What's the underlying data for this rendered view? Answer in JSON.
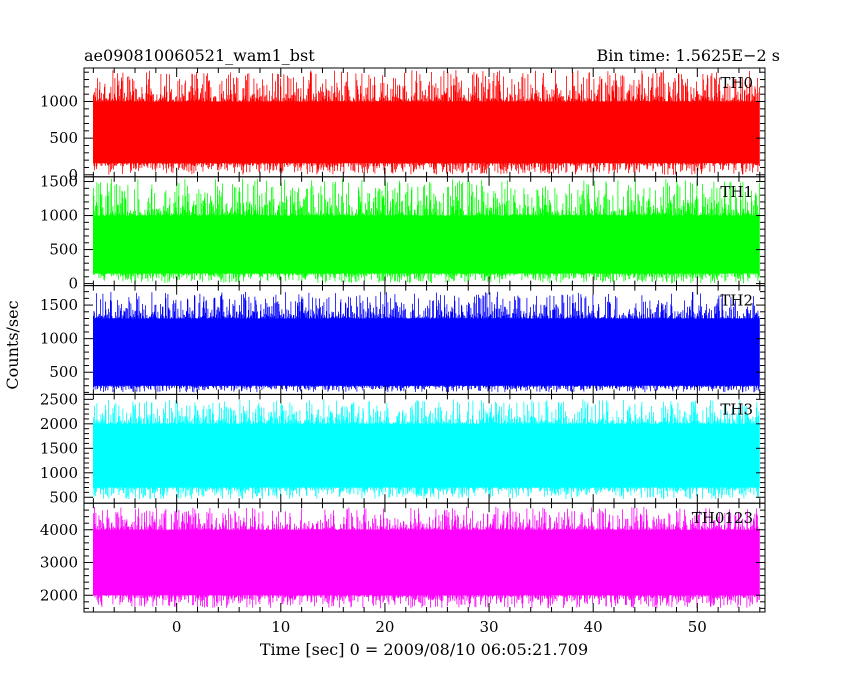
{
  "title_left": "ae090810060521_wam1_bst",
  "title_right": "Bin time: 1.5625E−2 s",
  "ylabel": "Counts/sec",
  "xlabel": "Time [sec] 0 = 2009/08/10 06:05:21.709",
  "chart_data": {
    "type": "line",
    "xlim": [
      -8.9,
      56.5
    ],
    "x_data_range": [
      -8,
      56
    ],
    "x_ticks": [
      0,
      10,
      20,
      30,
      40,
      50
    ],
    "x_tick_labels": [
      "0",
      "10",
      "20",
      "30",
      "40",
      "50"
    ],
    "panels": [
      {
        "name": "TH0",
        "color": "#ff0000",
        "ylim": [
          0,
          1430
        ],
        "ticks": [
          0,
          500,
          1000
        ],
        "tick_labels": [
          "0",
          "500",
          "1000"
        ],
        "typical_range": [
          160,
          1000
        ],
        "peak_range": [
          0,
          1430
        ]
      },
      {
        "name": "TH1",
        "color": "#00ff00",
        "ylim": [
          0,
          1540
        ],
        "ticks": [
          0,
          500,
          1000,
          1500
        ],
        "tick_labels": [
          "0",
          "500",
          "1000",
          "1500"
        ],
        "typical_range": [
          150,
          1000
        ],
        "peak_range": [
          0,
          1540
        ]
      },
      {
        "name": "TH2",
        "color": "#0000ff",
        "ylim": [
          200,
          1760
        ],
        "ticks": [
          500,
          1000,
          1500
        ],
        "tick_labels": [
          "500",
          "1000",
          "1500"
        ],
        "typical_range": [
          300,
          1300
        ],
        "peak_range": [
          200,
          1700
        ]
      },
      {
        "name": "TH3",
        "color": "#00ffff",
        "ylim": [
          420,
          2560
        ],
        "ticks": [
          500,
          1000,
          1500,
          2000,
          2500
        ],
        "tick_labels": [
          "500",
          "1000",
          "1500",
          "2000",
          "2500"
        ],
        "typical_range": [
          700,
          2000
        ],
        "peak_range": [
          460,
          2500
        ]
      },
      {
        "name": "TH0123",
        "color": "#ff00ff",
        "ylim": [
          1550,
          4750
        ],
        "ticks": [
          2000,
          3000,
          4000
        ],
        "tick_labels": [
          "2000",
          "3000",
          "4000"
        ],
        "typical_range": [
          2000,
          4000
        ],
        "peak_range": [
          1600,
          4700
        ]
      }
    ]
  }
}
